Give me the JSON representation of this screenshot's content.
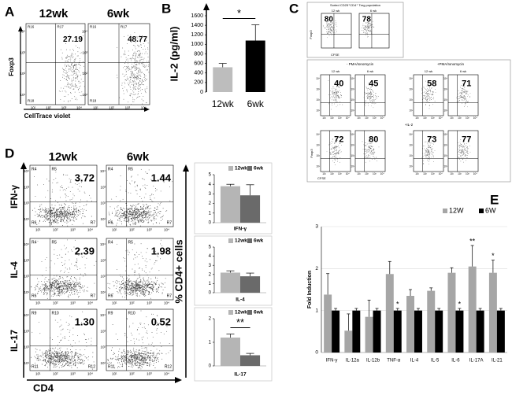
{
  "panel_labels": [
    "A",
    "B",
    "C",
    "D",
    "E"
  ],
  "flow_ticks": [
    "10¹",
    "10²",
    "10³",
    "10⁴"
  ],
  "panel_a": {
    "columns": [
      "12wk",
      "6wk"
    ],
    "y_label": "Foxp3",
    "x_label": "CellTrace violet",
    "plots": [
      {
        "gates": [
          "R16",
          "R17",
          "R18"
        ],
        "value": "27.19"
      },
      {
        "gates": [
          "R16",
          "R17",
          "R18"
        ],
        "value": "48.77"
      }
    ]
  },
  "panel_c": {
    "title": "Sorted CD25⁺CD4⁺ Treg population",
    "sorted": [
      {
        "label": "12 wk",
        "value": "80"
      },
      {
        "label": "6 wk",
        "value": "78"
      }
    ],
    "y_label": "Foxp3",
    "x_label": "CFSE",
    "groups": [
      "- PMA/Ionomycin",
      "+PMA/Ionomycin"
    ],
    "il2_label": "+IL-2",
    "rows": [
      [
        {
          "label": "12 wk",
          "value": "40"
        },
        {
          "label": "6 wk",
          "value": "45"
        },
        {
          "label": "12 wk",
          "value": "58"
        },
        {
          "label": "6 wk",
          "value": "71"
        }
      ],
      [
        {
          "value": "72"
        },
        {
          "value": "80"
        },
        {
          "value": "73"
        },
        {
          "value": "77"
        }
      ]
    ]
  },
  "panel_d": {
    "columns": [
      "12wk",
      "6wk"
    ],
    "x_label": "CD4",
    "y_label": "% CD4+ cells",
    "rows": [
      {
        "label": "IFN-γ",
        "gates": [
          "R4",
          "R5",
          "R6",
          "R7"
        ],
        "values": [
          "3.72",
          "1.44"
        ]
      },
      {
        "label": "IL-4",
        "gates": [
          "R4",
          "R5",
          "R6",
          "R7"
        ],
        "values": [
          "2.39",
          "1.98"
        ]
      },
      {
        "label": "IL-17",
        "gates": [
          "R9",
          "R10",
          "R11",
          "R12"
        ],
        "values": [
          "1.30",
          "0.52"
        ]
      }
    ]
  },
  "chart_data": [
    {
      "type": "bar",
      "y_label": "IL-2 (pg/ml)",
      "categories": [
        "12wk",
        "6wk"
      ],
      "values": [
        520,
        1080
      ],
      "errors": [
        80,
        330
      ],
      "colors": [
        "#bdbdbd",
        "#000000"
      ],
      "ylim": [
        0,
        1600
      ],
      "yticks": [
        0,
        200,
        400,
        600,
        800,
        1000,
        1200,
        1400,
        1600
      ],
      "annotations": [
        {
          "text": "*"
        }
      ]
    },
    {
      "type": "bar",
      "x_label": "IFN-γ",
      "series": [
        {
          "name": "12wk",
          "color": "#b5b5b5",
          "values": [
            3.8
          ],
          "errors": [
            0.2
          ]
        },
        {
          "name": "6wk",
          "color": "#6a6a6a",
          "values": [
            2.85
          ],
          "errors": [
            1.1
          ]
        }
      ],
      "ylim": [
        0,
        5
      ],
      "yticks": [
        0,
        1,
        2,
        3,
        4,
        5
      ]
    },
    {
      "type": "bar",
      "x_label": "IL-4",
      "series": [
        {
          "name": "12wk",
          "color": "#b5b5b5",
          "values": [
            2.2
          ],
          "errors": [
            0.2
          ]
        },
        {
          "name": "6wk",
          "color": "#6a6a6a",
          "values": [
            1.8
          ],
          "errors": [
            0.35
          ]
        }
      ],
      "ylim": [
        0,
        5
      ],
      "yticks": [
        0,
        1,
        2,
        3,
        4,
        5
      ]
    },
    {
      "type": "bar",
      "x_label": "IL-17",
      "series": [
        {
          "name": "12wk",
          "color": "#b5b5b5",
          "values": [
            1.2
          ],
          "errors": [
            0.15
          ]
        },
        {
          "name": "6wk",
          "color": "#6a6a6a",
          "values": [
            0.45
          ],
          "errors": [
            0.08
          ]
        }
      ],
      "ylim": [
        0,
        2
      ],
      "yticks": [
        0,
        1,
        2
      ],
      "annotations": [
        {
          "text": "**"
        }
      ]
    },
    {
      "type": "bar",
      "y_label": "Fold Induction",
      "categories": [
        "IFN-γ",
        "IL-12a",
        "IL-12b",
        "TNF-α",
        "IL-4",
        "IL-5",
        "IL-6",
        "IL-17A",
        "IL-21"
      ],
      "series": [
        {
          "name": "12W",
          "color": "#a6a6a6",
          "values": [
            1.38,
            0.52,
            0.85,
            1.87,
            1.35,
            1.47,
            1.9,
            2.05,
            1.9
          ],
          "errors": [
            0.5,
            0.4,
            0.4,
            0.3,
            0.15,
            0.07,
            0.12,
            0.5,
            0.3
          ]
        },
        {
          "name": "6W",
          "color": "#000000",
          "values": [
            1,
            1,
            1,
            1,
            1,
            1,
            1,
            1,
            1
          ],
          "errors": [
            0.05,
            0.05,
            0.05,
            0.05,
            0.05,
            0.05,
            0.05,
            0.05,
            0.05
          ]
        }
      ],
      "ylim": [
        0,
        3
      ],
      "yticks": [
        0,
        1,
        2,
        3
      ],
      "grid": true,
      "annotations": [
        {
          "text": "*",
          "category": "TNF-α",
          "series": "6W"
        },
        {
          "text": "*",
          "category": "IL-6",
          "series": "6W"
        },
        {
          "text": "**",
          "category": "IL-17A",
          "series": "12W"
        },
        {
          "text": "*",
          "category": "IL-21",
          "series": "12W"
        }
      ]
    }
  ]
}
